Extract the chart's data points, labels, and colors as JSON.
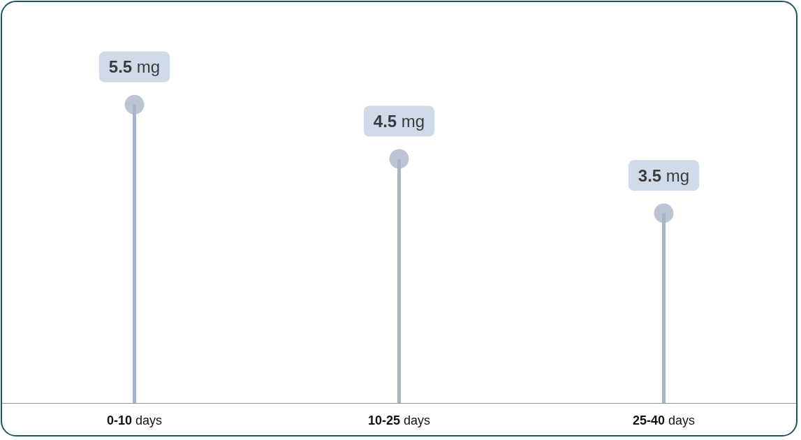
{
  "chart_data": {
    "type": "lollipop",
    "categories": [
      "0-10 days",
      "10-25 days",
      "25-40 days"
    ],
    "values": [
      5.5,
      4.5,
      3.5
    ],
    "value_labels": [
      "5.5 mg",
      "4.5 mg",
      "3.5 mg"
    ],
    "color": "#a9b5c7"
  }
}
